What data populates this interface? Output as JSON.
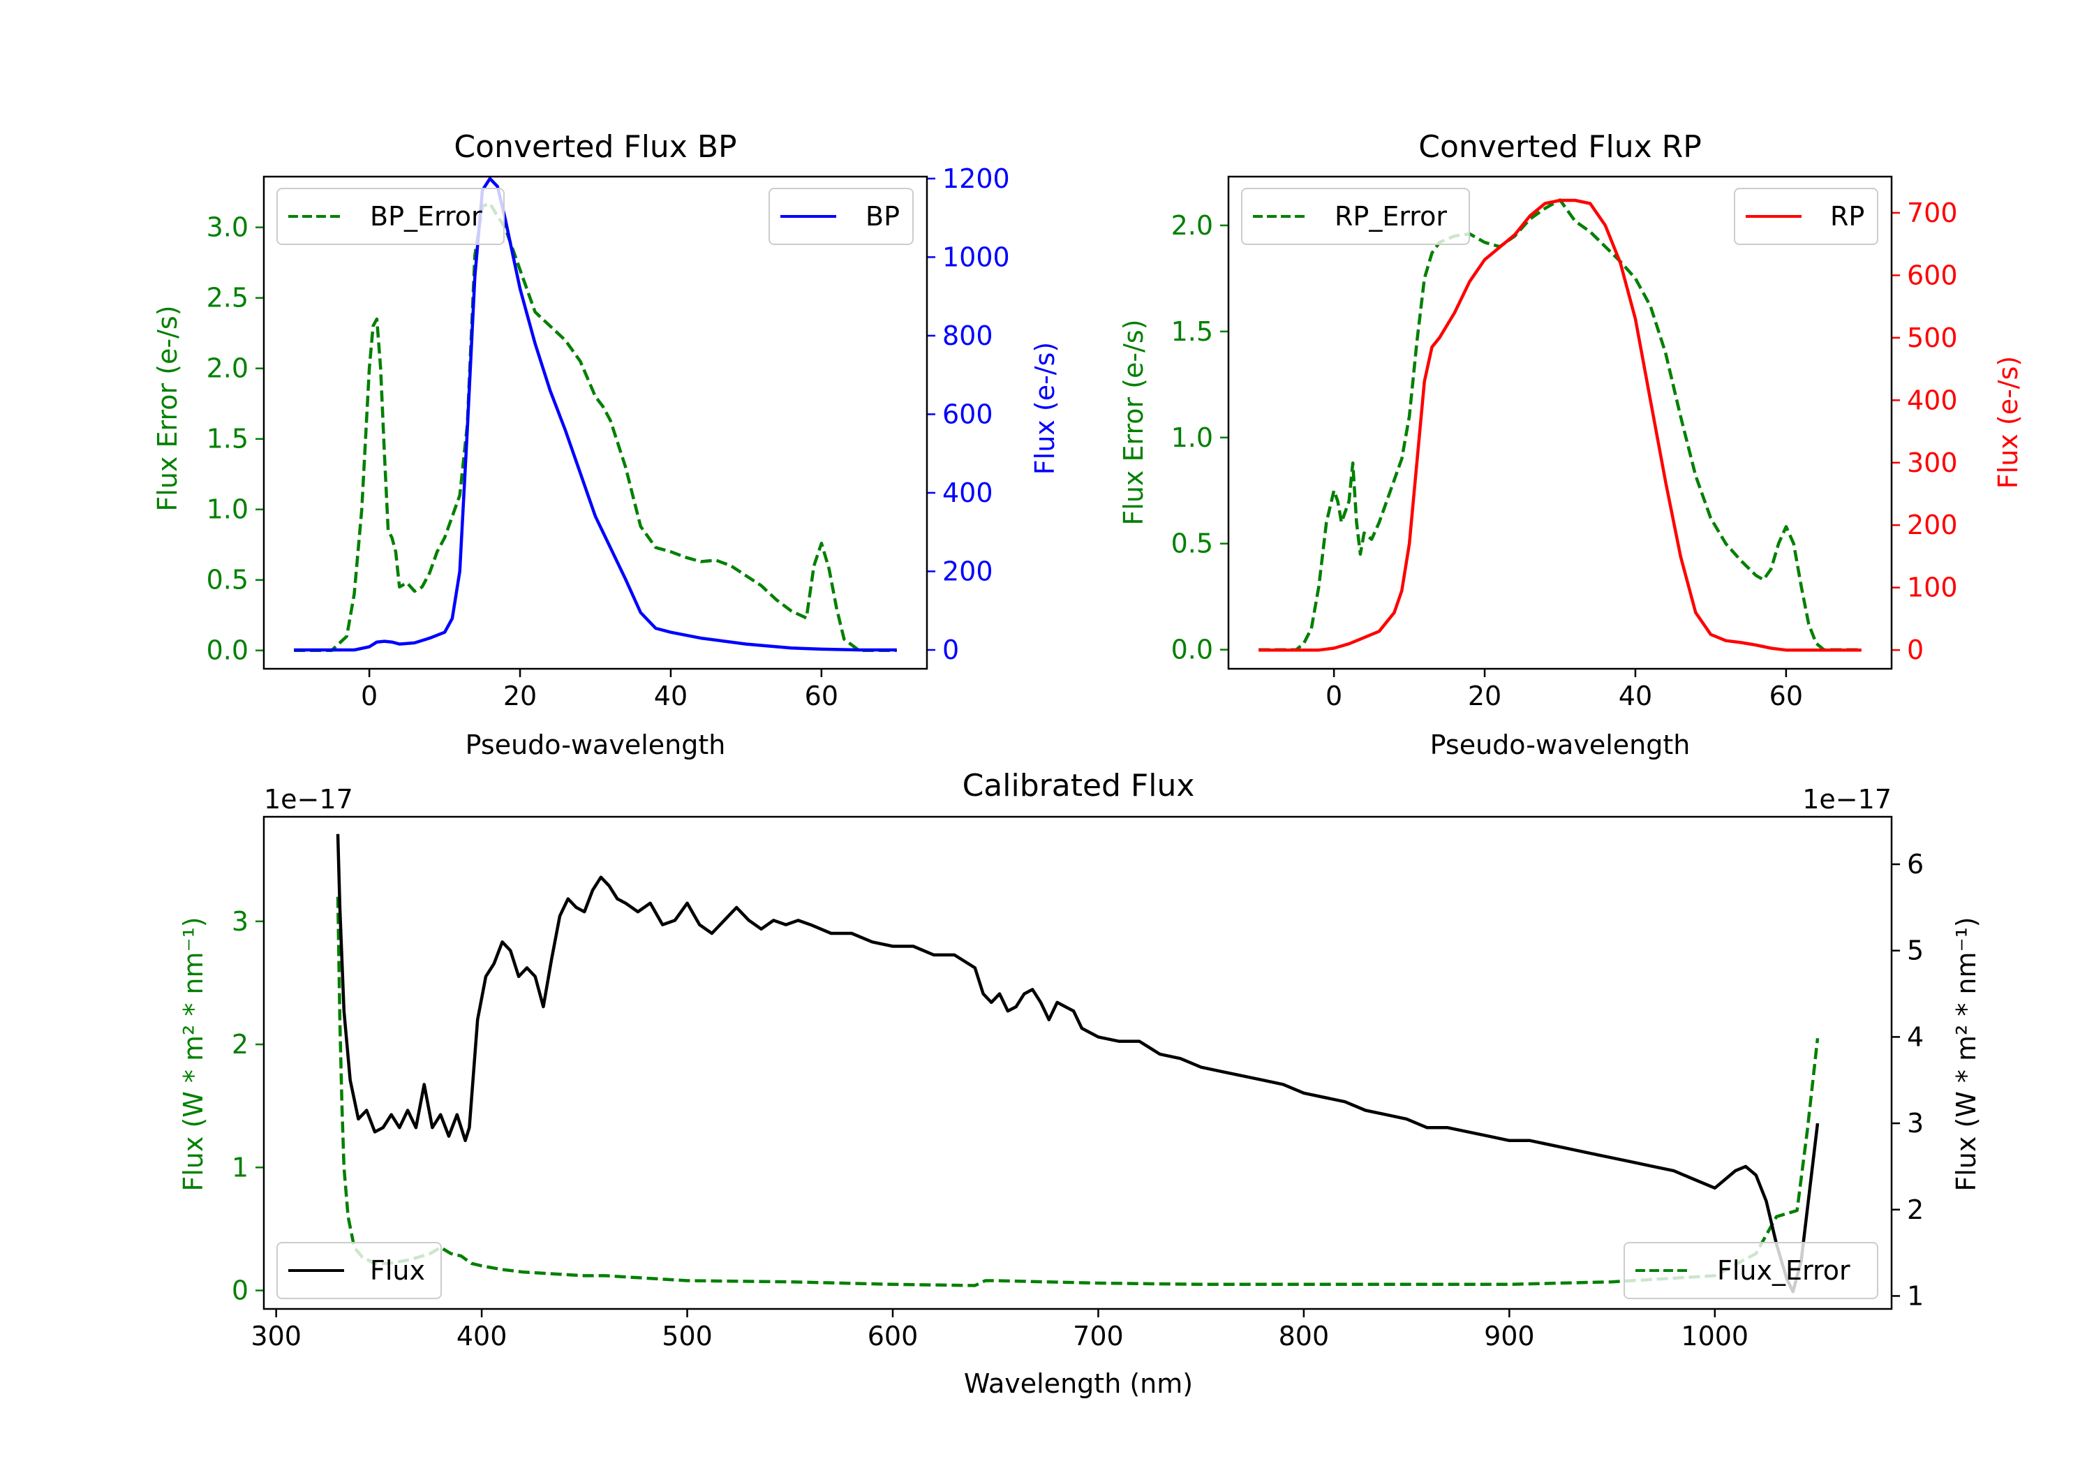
{
  "colors": {
    "bp": "#0000ff",
    "rp": "#ff0000",
    "error": "#008000",
    "flux": "#000000",
    "axis": "#000000"
  },
  "chart_data": [
    {
      "id": "bp",
      "type": "line",
      "title": "Converted Flux BP",
      "xlabel": "Pseudo-wavelength",
      "ylabel_left": "Flux Error (e-/s)",
      "ylabel_right": "Flux (e-/s)",
      "xlim": [
        -14,
        74
      ],
      "ylim_left": [
        -0.13,
        3.36
      ],
      "ylim_right": [
        -48,
        1205
      ],
      "xticks": [
        0,
        20,
        40,
        60
      ],
      "yticks_left": [
        0.0,
        0.5,
        1.0,
        1.5,
        2.0,
        2.5,
        3.0
      ],
      "yticks_right": [
        0,
        200,
        400,
        600,
        800,
        1000,
        1200
      ],
      "left_tick_labels": [
        "0.0",
        "0.5",
        "1.0",
        "1.5",
        "2.0",
        "2.5",
        "3.0"
      ],
      "right_tick_labels": [
        "0",
        "200",
        "400",
        "600",
        "800",
        "1000",
        "1200"
      ],
      "legend_left": "top-left",
      "legend_right": "top-right",
      "series": [
        {
          "name": "BP_Error",
          "axis": "left",
          "style": "dashed",
          "color": "#008000",
          "x": [
            -10,
            -5,
            -3,
            -2,
            -1,
            0,
            0.5,
            1,
            1.5,
            2,
            2.5,
            3,
            3.5,
            4,
            5,
            6,
            7,
            8,
            9,
            10,
            11,
            12,
            13,
            14,
            15,
            16,
            17,
            18,
            20,
            22,
            24,
            26,
            28,
            30,
            31,
            32,
            34,
            36,
            38,
            40,
            42,
            44,
            46,
            48,
            50,
            52,
            54,
            56,
            58,
            59,
            60,
            61,
            62,
            63,
            65,
            70
          ],
          "y": [
            0.0,
            0.0,
            0.1,
            0.4,
            1.0,
            2.0,
            2.3,
            2.35,
            2.0,
            1.4,
            0.85,
            0.8,
            0.7,
            0.45,
            0.48,
            0.42,
            0.45,
            0.55,
            0.7,
            0.8,
            0.95,
            1.1,
            1.6,
            2.8,
            3.15,
            3.17,
            3.08,
            3.0,
            2.7,
            2.4,
            2.3,
            2.2,
            2.05,
            1.8,
            1.73,
            1.63,
            1.3,
            0.88,
            0.73,
            0.7,
            0.66,
            0.63,
            0.64,
            0.6,
            0.53,
            0.46,
            0.36,
            0.28,
            0.23,
            0.6,
            0.76,
            0.58,
            0.3,
            0.08,
            0.0,
            0.0
          ]
        },
        {
          "name": "BP",
          "axis": "right",
          "style": "solid",
          "color": "#0000ff",
          "x": [
            -10,
            -2,
            0,
            1,
            2,
            3,
            4,
            6,
            8,
            10,
            11,
            12,
            13,
            14,
            15,
            16,
            17,
            18,
            20,
            22,
            24,
            26,
            28,
            30,
            32,
            34,
            36,
            38,
            40,
            44,
            50,
            56,
            60,
            65,
            70
          ],
          "y": [
            0,
            0,
            8,
            20,
            22,
            20,
            15,
            18,
            30,
            45,
            80,
            200,
            560,
            950,
            1170,
            1200,
            1180,
            1100,
            920,
            780,
            660,
            560,
            450,
            340,
            260,
            180,
            95,
            55,
            45,
            30,
            15,
            5,
            2,
            0,
            0
          ]
        }
      ]
    },
    {
      "id": "rp",
      "type": "line",
      "title": "Converted Flux RP",
      "xlabel": "Pseudo-wavelength",
      "ylabel_left": "Flux Error (e-/s)",
      "ylabel_right": "Flux (e-/s)",
      "xlim": [
        -14,
        74
      ],
      "ylim_left": [
        -0.09,
        2.23
      ],
      "ylim_right": [
        -30,
        758
      ],
      "xticks": [
        0,
        20,
        40,
        60
      ],
      "yticks_left": [
        0.0,
        0.5,
        1.0,
        1.5,
        2.0
      ],
      "yticks_right": [
        0,
        100,
        200,
        300,
        400,
        500,
        600,
        700
      ],
      "left_tick_labels": [
        "0.0",
        "0.5",
        "1.0",
        "1.5",
        "2.0"
      ],
      "right_tick_labels": [
        "0",
        "100",
        "200",
        "300",
        "400",
        "500",
        "600",
        "700"
      ],
      "legend_left": "top-left",
      "legend_right": "top-right",
      "series": [
        {
          "name": "RP_Error",
          "axis": "left",
          "style": "dashed",
          "color": "#008000",
          "x": [
            -10,
            -5,
            -4,
            -3,
            -2,
            -1,
            0,
            0.5,
            1,
            1.5,
            2,
            2.5,
            3,
            3.5,
            4,
            5,
            6,
            7,
            8,
            9,
            10,
            11,
            12,
            13,
            14,
            16,
            18,
            20,
            22,
            24,
            26,
            28,
            30,
            32,
            34,
            36,
            38,
            40,
            42,
            44,
            46,
            48,
            50,
            52,
            54,
            56,
            57,
            58,
            59,
            60,
            61,
            62,
            63,
            64,
            65,
            70
          ],
          "y": [
            0.0,
            0.0,
            0.03,
            0.1,
            0.3,
            0.6,
            0.75,
            0.7,
            0.6,
            0.65,
            0.7,
            0.88,
            0.6,
            0.45,
            0.55,
            0.52,
            0.6,
            0.7,
            0.8,
            0.9,
            1.1,
            1.45,
            1.75,
            1.87,
            1.92,
            1.95,
            1.96,
            1.92,
            1.9,
            1.95,
            2.03,
            2.08,
            2.12,
            2.02,
            1.97,
            1.9,
            1.83,
            1.75,
            1.62,
            1.4,
            1.1,
            0.82,
            0.62,
            0.5,
            0.42,
            0.35,
            0.33,
            0.38,
            0.5,
            0.58,
            0.5,
            0.3,
            0.12,
            0.03,
            0.0,
            0.0
          ]
        },
        {
          "name": "RP",
          "axis": "right",
          "style": "solid",
          "color": "#ff0000",
          "x": [
            -10,
            -2,
            0,
            2,
            4,
            6,
            8,
            9,
            10,
            11,
            12,
            13,
            14,
            16,
            18,
            20,
            22,
            24,
            26,
            28,
            30,
            32,
            34,
            36,
            38,
            40,
            42,
            44,
            46,
            48,
            50,
            52,
            54,
            56,
            58,
            60,
            62,
            65,
            70
          ],
          "y": [
            0,
            0,
            3,
            10,
            20,
            30,
            60,
            95,
            170,
            300,
            430,
            485,
            500,
            540,
            590,
            625,
            645,
            665,
            695,
            715,
            720,
            720,
            715,
            680,
            620,
            530,
            400,
            270,
            150,
            60,
            25,
            15,
            12,
            8,
            3,
            0,
            0,
            0,
            0
          ]
        }
      ]
    },
    {
      "id": "calibrated",
      "type": "line",
      "title": "Calibrated Flux",
      "xlabel": "Wavelength (nm)",
      "ylabel_left": "Flux (W * m² * nm⁻¹)",
      "ylabel_right": "Flux (W * m² * nm⁻¹)",
      "offset_left": "1e−17",
      "offset_right": "1e−17",
      "xlim": [
        294,
        1086
      ],
      "ylim_left": [
        -0.15,
        3.85
      ],
      "ylim_right": [
        0.85,
        6.55
      ],
      "xticks": [
        300,
        400,
        500,
        600,
        700,
        800,
        900,
        1000
      ],
      "yticks_left": [
        0,
        1,
        2,
        3
      ],
      "yticks_right": [
        1,
        2,
        3,
        4,
        5,
        6
      ],
      "left_tick_labels": [
        "0",
        "1",
        "2",
        "3"
      ],
      "right_tick_labels": [
        "1",
        "2",
        "3",
        "4",
        "5",
        "6"
      ],
      "legend_left": "bottom-left",
      "legend_right": "bottom-right",
      "series": [
        {
          "name": "Flux_Error",
          "axis": "left",
          "style": "dashed",
          "color": "#008000",
          "x": [
            330,
            331,
            332,
            333,
            335,
            338,
            342,
            348,
            355,
            365,
            375,
            380,
            385,
            390,
            395,
            400,
            410,
            420,
            430,
            440,
            450,
            460,
            480,
            500,
            550,
            600,
            640,
            645,
            650,
            700,
            750,
            800,
            850,
            900,
            950,
            1000,
            1020,
            1030,
            1040,
            1045,
            1050
          ],
          "y": [
            3.2,
            2.2,
            1.5,
            1.0,
            0.6,
            0.35,
            0.27,
            0.22,
            0.22,
            0.25,
            0.3,
            0.35,
            0.3,
            0.28,
            0.22,
            0.2,
            0.17,
            0.15,
            0.14,
            0.13,
            0.12,
            0.12,
            0.1,
            0.08,
            0.07,
            0.05,
            0.04,
            0.08,
            0.08,
            0.06,
            0.05,
            0.05,
            0.05,
            0.05,
            0.07,
            0.12,
            0.3,
            0.6,
            0.65,
            1.3,
            2.05
          ]
        },
        {
          "name": "Flux",
          "axis": "right",
          "style": "solid",
          "color": "#000000",
          "x": [
            330,
            331,
            333,
            336,
            340,
            344,
            348,
            352,
            356,
            360,
            364,
            368,
            372,
            376,
            380,
            384,
            388,
            392,
            394,
            398,
            402,
            406,
            410,
            414,
            418,
            422,
            426,
            430,
            434,
            438,
            442,
            446,
            450,
            454,
            458,
            462,
            466,
            470,
            476,
            482,
            488,
            494,
            500,
            506,
            512,
            518,
            524,
            530,
            536,
            542,
            548,
            554,
            560,
            570,
            580,
            590,
            600,
            610,
            620,
            630,
            640,
            644,
            648,
            652,
            656,
            660,
            664,
            668,
            672,
            676,
            680,
            684,
            688,
            692,
            700,
            710,
            720,
            730,
            740,
            750,
            760,
            770,
            780,
            790,
            800,
            810,
            820,
            830,
            840,
            850,
            860,
            870,
            880,
            890,
            900,
            910,
            920,
            930,
            940,
            950,
            960,
            970,
            980,
            990,
            1000,
            1005,
            1010,
            1015,
            1020,
            1025,
            1030,
            1035,
            1038,
            1042,
            1046,
            1050
          ],
          "y": [
            6.35,
            5.5,
            4.3,
            3.5,
            3.05,
            3.15,
            2.9,
            2.95,
            3.1,
            2.95,
            3.15,
            2.95,
            3.45,
            2.95,
            3.1,
            2.85,
            3.1,
            2.8,
            2.95,
            4.2,
            4.7,
            4.85,
            5.1,
            5.0,
            4.7,
            4.8,
            4.7,
            4.35,
            4.9,
            5.4,
            5.6,
            5.5,
            5.45,
            5.7,
            5.85,
            5.75,
            5.6,
            5.55,
            5.45,
            5.55,
            5.3,
            5.35,
            5.55,
            5.3,
            5.2,
            5.35,
            5.5,
            5.35,
            5.25,
            5.35,
            5.3,
            5.35,
            5.3,
            5.2,
            5.2,
            5.1,
            5.05,
            5.05,
            4.95,
            4.95,
            4.8,
            4.5,
            4.4,
            4.5,
            4.3,
            4.35,
            4.5,
            4.55,
            4.4,
            4.2,
            4.4,
            4.35,
            4.3,
            4.1,
            4.0,
            3.95,
            3.95,
            3.8,
            3.75,
            3.65,
            3.6,
            3.55,
            3.5,
            3.45,
            3.35,
            3.3,
            3.25,
            3.15,
            3.1,
            3.05,
            2.95,
            2.95,
            2.9,
            2.85,
            2.8,
            2.8,
            2.75,
            2.7,
            2.65,
            2.6,
            2.55,
            2.5,
            2.45,
            2.35,
            2.25,
            2.35,
            2.45,
            2.5,
            2.4,
            2.1,
            1.6,
            1.2,
            1.05,
            1.4,
            2.2,
            3.0
          ]
        }
      ]
    }
  ]
}
